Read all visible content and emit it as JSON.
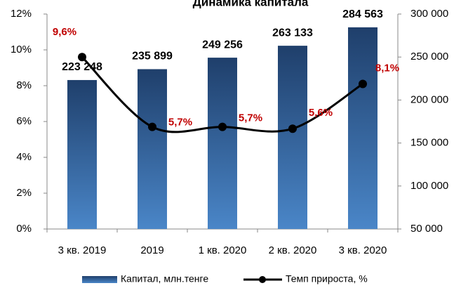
{
  "chart_data": {
    "type": "bar_line",
    "title": "Динамика капитала",
    "categories": [
      "3 кв. 2019",
      "2019",
      "1 кв. 2020",
      "2 кв. 2020",
      "3 кв. 2020"
    ],
    "series": [
      {
        "name": "Капитал, млн.тенге",
        "type": "bar",
        "axis": "y2",
        "color": "#2e5d94",
        "values": [
          223248,
          235899,
          249256,
          263133,
          284563
        ],
        "value_labels": [
          "223 248",
          "235 899",
          "249 256",
          "263 133",
          "284 563"
        ]
      },
      {
        "name": "Темп прироста, %",
        "type": "line",
        "axis": "y",
        "color": "#000000",
        "values": [
          9.6,
          5.7,
          5.7,
          5.6,
          8.1
        ],
        "value_labels": [
          "9,6%",
          "5,7%",
          "5,7%",
          "5,6%",
          "8,1%"
        ]
      }
    ],
    "ylim": [
      0,
      12
    ],
    "yticks": [
      {
        "value": 0,
        "label": "0%"
      },
      {
        "value": 2,
        "label": "2%"
      },
      {
        "value": 4,
        "label": "4%"
      },
      {
        "value": 6,
        "label": "6%"
      },
      {
        "value": 8,
        "label": "8%"
      },
      {
        "value": 10,
        "label": "10%"
      },
      {
        "value": 12,
        "label": "12%"
      }
    ],
    "y2lim": [
      50000,
      300000
    ],
    "y2ticks": [
      {
        "value": 50000,
        "label": "50 000"
      },
      {
        "value": 100000,
        "label": "100 000"
      },
      {
        "value": 150000,
        "label": "150 000"
      },
      {
        "value": 200000,
        "label": "200 000"
      },
      {
        "value": 250000,
        "label": "250 000"
      },
      {
        "value": 300000,
        "label": "300 000"
      }
    ],
    "legend": "bottom"
  }
}
